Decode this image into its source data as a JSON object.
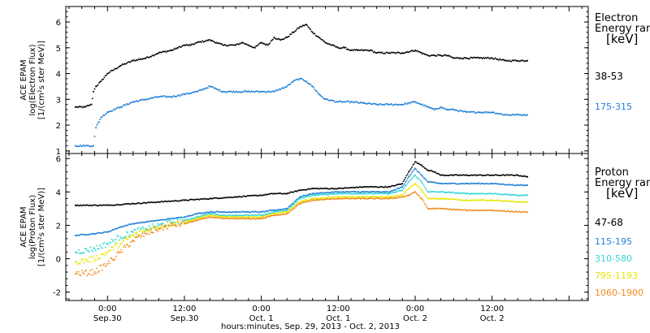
{
  "chart_data": [
    {
      "type": "scatter",
      "ylabel_lines": [
        "ACE EPAM",
        "log(Electron Flux)",
        "[1/(cm²s ster MeV)]"
      ],
      "ylim": [
        0.9,
        6.6
      ],
      "yticks": [
        1,
        2,
        3,
        4,
        5,
        6
      ],
      "ytick_labels": [
        "1",
        "2",
        "3",
        "4",
        "5",
        "6"
      ],
      "legend_title_lines": [
        "Electron",
        "Energy range",
        "[keV]"
      ],
      "series": [
        {
          "name": "38-53",
          "color": "#000000",
          "x": [
            -5,
            -3.5,
            -2.5,
            -2.2,
            -1.8,
            -1,
            0,
            2,
            4,
            6,
            8,
            10,
            11,
            12,
            13,
            14,
            16,
            17,
            18,
            20,
            21,
            22,
            23,
            24,
            25,
            26,
            27,
            28,
            29,
            30,
            31,
            32,
            33,
            34,
            35,
            36,
            37,
            38,
            39,
            40,
            41,
            42,
            44,
            46,
            48,
            49,
            50,
            51,
            52,
            53,
            54,
            55,
            56,
            58,
            60,
            62,
            64,
            65.5
          ],
          "y": [
            2.7,
            2.7,
            2.8,
            3.3,
            3.5,
            3.7,
            4.0,
            4.3,
            4.5,
            4.6,
            4.8,
            4.9,
            5.0,
            5.1,
            5.1,
            5.2,
            5.3,
            5.2,
            5.1,
            5.1,
            5.2,
            5.1,
            5.0,
            5.2,
            5.1,
            5.4,
            5.3,
            5.4,
            5.6,
            5.8,
            5.9,
            5.6,
            5.4,
            5.2,
            5.1,
            5.0,
            5.0,
            4.9,
            4.9,
            4.9,
            4.9,
            4.8,
            4.8,
            4.8,
            4.9,
            4.8,
            4.7,
            4.7,
            4.7,
            4.7,
            4.6,
            4.6,
            4.6,
            4.6,
            4.6,
            4.5,
            4.5,
            4.5
          ]
        },
        {
          "name": "175-315",
          "color": "#1f7fd6",
          "x": [
            -5,
            -3,
            -2.2,
            -1.8,
            -1,
            0,
            2,
            4,
            6,
            8,
            10,
            12,
            14,
            16,
            17,
            18,
            20,
            22,
            24,
            26,
            28,
            29,
            30,
            31,
            32,
            33,
            34,
            36,
            38,
            40,
            42,
            44,
            46,
            48,
            49,
            50,
            51,
            52,
            53,
            54,
            56,
            58,
            60,
            62,
            64,
            65.5
          ],
          "y": [
            1.2,
            1.2,
            1.2,
            1.9,
            2.3,
            2.5,
            2.7,
            2.9,
            3.0,
            3.1,
            3.1,
            3.2,
            3.3,
            3.5,
            3.4,
            3.3,
            3.3,
            3.3,
            3.3,
            3.3,
            3.5,
            3.7,
            3.8,
            3.7,
            3.5,
            3.2,
            3.0,
            2.9,
            2.9,
            2.85,
            2.8,
            2.8,
            2.8,
            2.9,
            2.8,
            2.7,
            2.6,
            2.7,
            2.6,
            2.6,
            2.5,
            2.5,
            2.5,
            2.4,
            2.4,
            2.4
          ]
        }
      ]
    },
    {
      "type": "scatter",
      "ylabel_lines": [
        "ACE EPAM",
        "log(Proton Flux)",
        "[1/(cm²s ster MeV)]"
      ],
      "ylim": [
        -2.5,
        6.3
      ],
      "yticks": [
        -2,
        0,
        2,
        4,
        6
      ],
      "ytick_labels": [
        "-2",
        "0",
        "2",
        "4",
        "6"
      ],
      "legend_title_lines": [
        "Proton",
        "Energy range",
        "[keV]"
      ],
      "xlabel": "hours:minutes, Sep. 29, 2013 - Oct. 2, 2013",
      "xlim": [
        -6.5,
        75
      ],
      "xticks": [
        0,
        12,
        24,
        36,
        48,
        60
      ],
      "xtick_labels_top": [
        "0:00",
        "12:00",
        "0:00",
        "12:00",
        "0:00",
        "12:00"
      ],
      "xtick_labels_bottom": [
        "Sep.30",
        "Sep.30",
        "Oct. 1",
        "Oct. 1",
        "Oct. 2",
        "Oct. 2"
      ],
      "series": [
        {
          "name": "47-68",
          "color": "#000000",
          "x": [
            -5,
            0,
            4,
            8,
            12,
            16,
            20,
            24,
            26,
            28,
            30,
            32,
            36,
            40,
            44,
            46,
            47,
            48,
            49,
            50,
            51,
            52,
            54,
            56,
            60,
            64,
            65.5
          ],
          "y": [
            3.2,
            3.2,
            3.3,
            3.4,
            3.5,
            3.6,
            3.7,
            3.8,
            3.9,
            3.9,
            4.1,
            4.2,
            4.2,
            4.3,
            4.3,
            4.5,
            5.2,
            5.8,
            5.6,
            5.3,
            5.2,
            5.0,
            5.0,
            5.0,
            5.0,
            5.0,
            4.9
          ]
        },
        {
          "name": "115-195",
          "color": "#1f7fd6",
          "x": [
            -5,
            -2,
            0,
            2,
            4,
            6,
            8,
            10,
            12,
            14,
            16,
            18,
            20,
            22,
            24,
            26,
            28,
            30,
            32,
            36,
            40,
            44,
            46,
            47,
            48,
            49,
            50,
            52,
            56,
            60,
            64,
            65.5
          ],
          "y": [
            1.4,
            1.5,
            1.6,
            1.9,
            2.1,
            2.2,
            2.3,
            2.4,
            2.5,
            2.7,
            2.8,
            2.8,
            2.8,
            2.8,
            2.8,
            2.9,
            3.0,
            3.7,
            3.9,
            4.0,
            4.0,
            4.0,
            4.3,
            4.9,
            5.4,
            5.0,
            4.6,
            4.5,
            4.5,
            4.5,
            4.4,
            4.4
          ]
        },
        {
          "name": "310-580",
          "color": "#33d6d6",
          "x": [
            -5,
            -2,
            0,
            2,
            4,
            6,
            8,
            10,
            12,
            14,
            16,
            18,
            20,
            22,
            24,
            26,
            28,
            30,
            32,
            36,
            40,
            44,
            46,
            47,
            48,
            49,
            50,
            52,
            56,
            60,
            64,
            65.5
          ],
          "y": [
            0.4,
            0.6,
            0.9,
            1.3,
            1.6,
            1.8,
            2.0,
            2.2,
            2.3,
            2.5,
            2.7,
            2.6,
            2.6,
            2.6,
            2.6,
            2.8,
            2.9,
            3.6,
            3.8,
            3.9,
            3.9,
            3.9,
            4.1,
            4.6,
            5.0,
            4.6,
            4.0,
            4.0,
            3.9,
            3.9,
            3.8,
            3.8
          ]
        },
        {
          "name": "795-1193",
          "color": "#e6e600",
          "x": [
            -5,
            -2,
            0,
            2,
            4,
            6,
            8,
            10,
            12,
            14,
            16,
            18,
            20,
            22,
            24,
            26,
            28,
            30,
            32,
            36,
            40,
            44,
            46,
            47,
            48,
            49,
            50,
            52,
            56,
            60,
            64,
            65.5
          ],
          "y": [
            -0.2,
            0.0,
            0.4,
            0.9,
            1.4,
            1.7,
            1.9,
            2.1,
            2.2,
            2.4,
            2.6,
            2.5,
            2.5,
            2.5,
            2.5,
            2.7,
            2.8,
            3.4,
            3.6,
            3.7,
            3.7,
            3.7,
            3.8,
            4.2,
            4.5,
            4.1,
            3.6,
            3.6,
            3.5,
            3.5,
            3.4,
            3.4
          ]
        },
        {
          "name": "1060-1900",
          "color": "#f08c1c",
          "x": [
            -5,
            -2,
            0,
            2,
            4,
            6,
            8,
            10,
            12,
            14,
            16,
            18,
            20,
            22,
            24,
            26,
            28,
            30,
            32,
            36,
            40,
            44,
            46,
            47,
            48,
            49,
            50,
            52,
            56,
            60,
            64,
            65.5
          ],
          "y": [
            -0.9,
            -0.8,
            -0.3,
            0.4,
            1.1,
            1.5,
            1.8,
            2.0,
            2.1,
            2.3,
            2.5,
            2.4,
            2.4,
            2.4,
            2.4,
            2.6,
            2.7,
            3.3,
            3.5,
            3.6,
            3.6,
            3.6,
            3.7,
            3.8,
            4.0,
            3.6,
            3.0,
            3.0,
            2.9,
            2.9,
            2.8,
            2.8
          ]
        }
      ]
    }
  ]
}
